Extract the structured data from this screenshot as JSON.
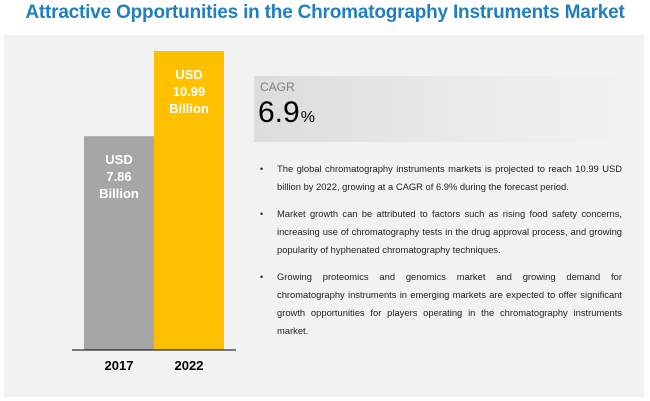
{
  "title": "Attractive Opportunities in the Chromatography Instruments Market",
  "chart_data": {
    "type": "bar",
    "categories": [
      "2017",
      "2022"
    ],
    "values": [
      7.86,
      10.99
    ],
    "unit": "USD Billion",
    "bar_labels": [
      [
        "USD",
        "7.86",
        "Billion"
      ],
      [
        "USD",
        "10.99",
        "Billion"
      ]
    ],
    "colors": [
      "#a6a6a6",
      "#ffc000"
    ],
    "ylim": [
      0,
      10.99
    ]
  },
  "cagr": {
    "label": "CAGR",
    "value": "6.9",
    "suffix": "%"
  },
  "bullets": [
    "The global chromatography instruments markets is projected to reach 10.99 USD billion by 2022, growing at a CAGR of 6.9% during the forecast period.",
    "Market growth can be attributed to factors such as rising food safety concerns, increasing use of chromatography tests in the drug approval process, and growing popularity of hyphenated chromatography techniques.",
    "Growing proteomics and genomics market and growing demand for chromatography instruments in emerging markets are expected to offer significant growth opportunities for players operating in the chromatography instruments market."
  ],
  "bullet_symbol": "•"
}
